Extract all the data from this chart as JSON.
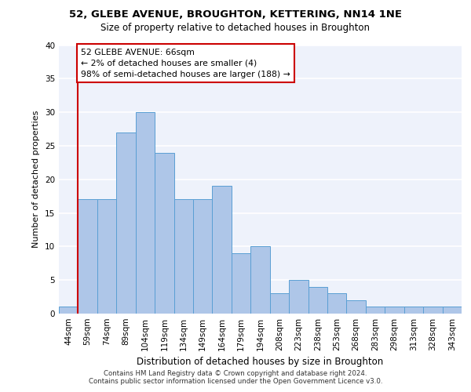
{
  "title_line1": "52, GLEBE AVENUE, BROUGHTON, KETTERING, NN14 1NE",
  "title_line2": "Size of property relative to detached houses in Broughton",
  "xlabel": "Distribution of detached houses by size in Broughton",
  "ylabel": "Number of detached properties",
  "categories": [
    "44sqm",
    "59sqm",
    "74sqm",
    "89sqm",
    "104sqm",
    "119sqm",
    "134sqm",
    "149sqm",
    "164sqm",
    "179sqm",
    "194sqm",
    "208sqm",
    "223sqm",
    "238sqm",
    "253sqm",
    "268sqm",
    "283sqm",
    "298sqm",
    "313sqm",
    "328sqm",
    "343sqm"
  ],
  "values": [
    1,
    17,
    17,
    27,
    30,
    24,
    17,
    17,
    19,
    9,
    10,
    3,
    5,
    4,
    3,
    2,
    1,
    1,
    1,
    1,
    1
  ],
  "bar_color": "#aec6e8",
  "bar_edge_color": "#5a9fd4",
  "property_line_x": 1,
  "annotation_text": "52 GLEBE AVENUE: 66sqm\n← 2% of detached houses are smaller (4)\n98% of semi-detached houses are larger (188) →",
  "annotation_box_color": "#ffffff",
  "annotation_box_edge": "#cc0000",
  "footer_line1": "Contains HM Land Registry data © Crown copyright and database right 2024.",
  "footer_line2": "Contains public sector information licensed under the Open Government Licence v3.0.",
  "ylim": [
    0,
    40
  ],
  "yticks": [
    0,
    5,
    10,
    15,
    20,
    25,
    30,
    35,
    40
  ],
  "background_color": "#eef2fb",
  "grid_color": "#ffffff",
  "property_line_color": "#cc0000",
  "title1_fontsize": 9.5,
  "title2_fontsize": 8.5,
  "ylabel_fontsize": 8,
  "xlabel_fontsize": 8.5,
  "tick_fontsize": 7.5,
  "footer_fontsize": 6.2
}
